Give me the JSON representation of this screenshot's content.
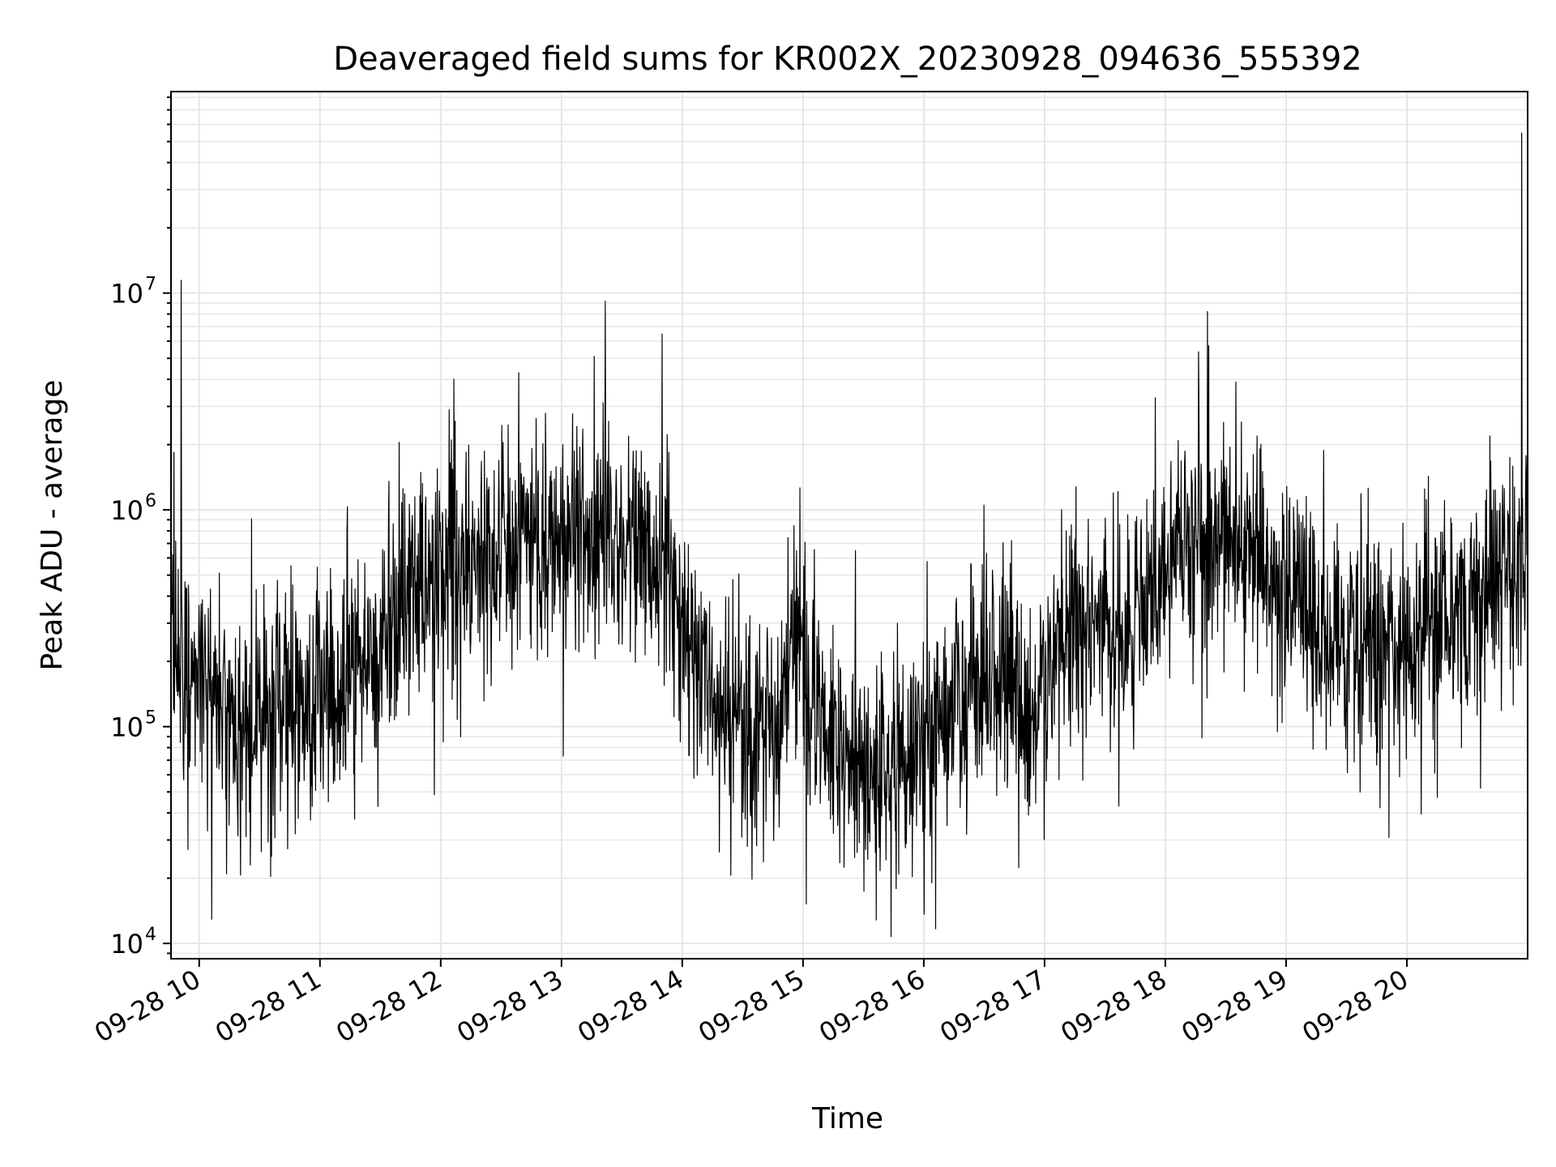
{
  "chart_data": {
    "type": "line",
    "title": "Deaveraged field sums for KR002X_20230928_094636_555392",
    "xlabel": "Time",
    "ylabel": "Peak ADU - average",
    "yscale": "log",
    "ylim": [
      8500,
      85000000
    ],
    "xlim": [
      "2023-09-28 09:46",
      "2023-09-28 21:00"
    ],
    "grid": true,
    "line_color": "#000000",
    "grid_color": "#e6e6e6",
    "x_ticks": [
      {
        "t": "2023-09-28 10:00",
        "label": "09-28 10"
      },
      {
        "t": "2023-09-28 11:00",
        "label": "09-28 11"
      },
      {
        "t": "2023-09-28 12:00",
        "label": "09-28 12"
      },
      {
        "t": "2023-09-28 13:00",
        "label": "09-28 13"
      },
      {
        "t": "2023-09-28 14:00",
        "label": "09-28 14"
      },
      {
        "t": "2023-09-28 15:00",
        "label": "09-28 15"
      },
      {
        "t": "2023-09-28 16:00",
        "label": "09-28 16"
      },
      {
        "t": "2023-09-28 17:00",
        "label": "09-28 17"
      },
      {
        "t": "2023-09-28 18:00",
        "label": "09-28 18"
      },
      {
        "t": "2023-09-28 19:00",
        "label": "09-28 19"
      },
      {
        "t": "2023-09-28 20:00",
        "label": "09-28 20"
      }
    ],
    "y_ticks": [
      {
        "value": 10000,
        "base": "10",
        "exp": "4"
      },
      {
        "value": 100000,
        "base": "10",
        "exp": "5"
      },
      {
        "value": 1000000,
        "base": "10",
        "exp": "6"
      },
      {
        "value": 10000000,
        "base": "10",
        "exp": "7"
      }
    ],
    "series": [
      {
        "t": [
          "2023-09-28 09:46",
          "2023-09-28 09:52",
          "2023-09-28 09:58",
          "2023-09-28 10:05",
          "2023-09-28 10:15",
          "2023-09-28 10:25",
          "2023-09-28 10:35",
          "2023-09-28 10:45",
          "2023-09-28 10:55",
          "2023-09-28 11:05",
          "2023-09-28 11:15",
          "2023-09-28 11:25",
          "2023-09-28 11:35",
          "2023-09-28 11:45",
          "2023-09-28 11:55",
          "2023-09-28 12:05",
          "2023-09-28 12:15",
          "2023-09-28 12:25",
          "2023-09-28 12:35",
          "2023-09-28 12:45",
          "2023-09-28 12:55",
          "2023-09-28 13:05",
          "2023-09-28 13:15",
          "2023-09-28 13:25",
          "2023-09-28 13:35",
          "2023-09-28 13:45",
          "2023-09-28 13:52",
          "2023-09-28 14:00",
          "2023-09-28 14:10",
          "2023-09-28 14:20",
          "2023-09-28 14:30",
          "2023-09-28 14:40",
          "2023-09-28 14:50",
          "2023-09-28 14:57",
          "2023-09-28 15:05",
          "2023-09-28 15:15",
          "2023-09-28 15:25",
          "2023-09-28 15:35",
          "2023-09-28 15:45",
          "2023-09-28 15:55",
          "2023-09-28 16:05",
          "2023-09-28 16:15",
          "2023-09-28 16:25",
          "2023-09-28 16:35",
          "2023-09-28 16:45",
          "2023-09-28 16:55",
          "2023-09-28 17:05",
          "2023-09-28 17:15",
          "2023-09-28 17:25",
          "2023-09-28 17:35",
          "2023-09-28 17:45",
          "2023-09-28 17:55",
          "2023-09-28 18:05",
          "2023-09-28 18:15",
          "2023-09-28 18:25",
          "2023-09-28 18:35",
          "2023-09-28 18:45",
          "2023-09-28 18:55",
          "2023-09-28 19:05",
          "2023-09-28 19:15",
          "2023-09-28 19:25",
          "2023-09-28 19:35",
          "2023-09-28 19:45",
          "2023-09-28 19:55",
          "2023-09-28 20:05",
          "2023-09-28 20:15",
          "2023-09-28 20:25",
          "2023-09-28 20:35",
          "2023-09-28 20:45",
          "2023-09-28 20:55",
          "2023-09-28 21:00"
        ],
        "y": [
          300000,
          200000,
          180000,
          150000,
          110000,
          100000,
          110000,
          120000,
          130000,
          140000,
          160000,
          200000,
          300000,
          400000,
          480000,
          520000,
          560000,
          620000,
          660000,
          700000,
          720000,
          760000,
          800000,
          780000,
          720000,
          650000,
          640000,
          300000,
          180000,
          130000,
          100000,
          95000,
          120000,
          300000,
          120000,
          90000,
          70000,
          60000,
          65000,
          70000,
          90000,
          130000,
          180000,
          200000,
          150000,
          110000,
          200000,
          350000,
          300000,
          250000,
          300000,
          400000,
          600000,
          800000,
          900000,
          700000,
          600000,
          500000,
          400000,
          300000,
          250000,
          250000,
          220000,
          250000,
          280000,
          300000,
          320000,
          380000,
          550000,
          600000,
          600000
        ]
      }
    ],
    "spikes": [
      {
        "t": "2023-09-28 09:51",
        "y": 11500000
      },
      {
        "t": "2023-09-28 13:50",
        "y": 6500000
      },
      {
        "t": "2023-09-28 12:52",
        "y": 2800000
      },
      {
        "t": "2023-09-28 17:55",
        "y": 3300000
      },
      {
        "t": "2023-09-28 18:35",
        "y": 3900000
      },
      {
        "t": "2023-09-28 20:57",
        "y": 55000000
      }
    ]
  }
}
